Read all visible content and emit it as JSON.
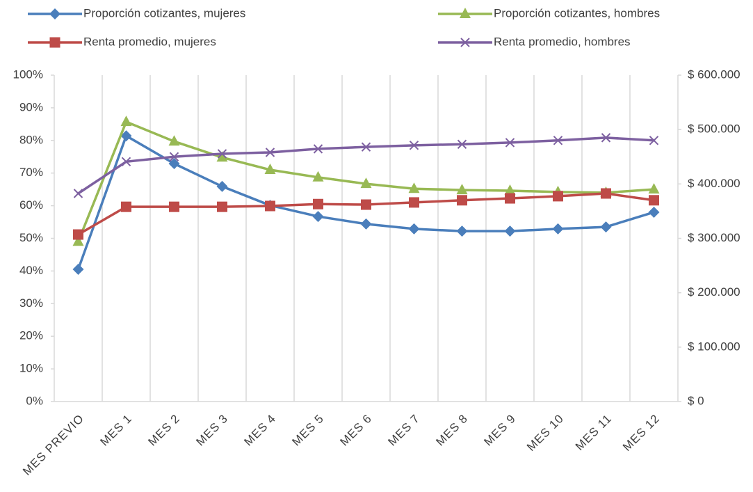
{
  "chart_data": {
    "type": "line",
    "categories": [
      "MES PREVIO",
      "MES 1",
      "MES 2",
      "MES 3",
      "MES 4",
      "MES 5",
      "MES 6",
      "MES 7",
      "MES 8",
      "MES 9",
      "MES 10",
      "MES 11",
      "MES 12"
    ],
    "series": [
      {
        "name": "Proporción cotizantes, mujeres",
        "color": "#4a7ebb",
        "marker": "diamond",
        "values": [
          40.5,
          81.4,
          72.9,
          65.9,
          60.1,
          56.7,
          54.4,
          52.9,
          52.2,
          52.2,
          52.9,
          53.5,
          58.0
        ]
      },
      {
        "name": "Proporción cotizantes, hombres",
        "color": "#98b954",
        "marker": "triangle",
        "values": [
          49.0,
          85.7,
          79.7,
          74.8,
          71.0,
          68.7,
          66.7,
          65.2,
          64.8,
          64.6,
          64.2,
          64.0,
          65.0
        ]
      },
      {
        "name": "Renta promedio, mujeres",
        "color": "#be4b48",
        "marker": "square",
        "axis": "y2",
        "values": [
          307000,
          358000,
          358000,
          358000,
          359500,
          363000,
          362000,
          366000,
          370000,
          373500,
          377500,
          382500,
          370000
        ]
      },
      {
        "name": "Renta promedio, hombres",
        "color": "#7d60a0",
        "marker": "x",
        "axis": "y2",
        "values": [
          382500,
          441000,
          450000,
          455500,
          458000,
          464500,
          468000,
          471000,
          473000,
          476000,
          480000,
          485000,
          480000
        ]
      }
    ],
    "ylim": [
      0,
      100
    ],
    "yticks": [
      {
        "value": 0,
        "label": "0%"
      },
      {
        "value": 10,
        "label": "10%"
      },
      {
        "value": 20,
        "label": "20%"
      },
      {
        "value": 30,
        "label": "30%"
      },
      {
        "value": 40,
        "label": "40%"
      },
      {
        "value": 50,
        "label": "50%"
      },
      {
        "value": 60,
        "label": "60%"
      },
      {
        "value": 70,
        "label": "70%"
      },
      {
        "value": 80,
        "label": "80%"
      },
      {
        "value": 90,
        "label": "90%"
      },
      {
        "value": 100,
        "label": "100%"
      }
    ],
    "y2lim": [
      0,
      600000
    ],
    "y2ticks": [
      {
        "value": 0,
        "label": "$ 0"
      },
      {
        "value": 100000,
        "label": "$ 100.000"
      },
      {
        "value": 200000,
        "label": "$ 200.000"
      },
      {
        "value": 300000,
        "label": "$ 300.000"
      },
      {
        "value": 400000,
        "label": "$ 400.000"
      },
      {
        "value": 500000,
        "label": "$ 500.000"
      },
      {
        "value": 600000,
        "label": "$ 600.000"
      }
    ],
    "legend": "top"
  }
}
